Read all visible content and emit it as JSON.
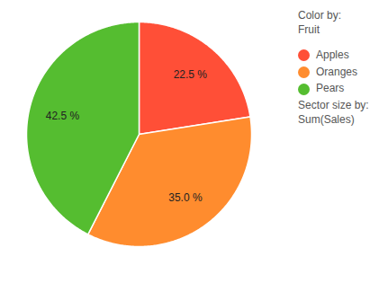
{
  "chart_data": {
    "type": "pie",
    "categories": [
      "Apples",
      "Oranges",
      "Pears"
    ],
    "values": [
      22.5,
      35.0,
      42.5
    ],
    "value_labels": [
      "22.5 %",
      "35.0 %",
      "42.5 %"
    ],
    "colors": [
      "#ff4f37",
      "#ff8c2e",
      "#55bd30"
    ],
    "data_labels": true,
    "legend": "top right",
    "legend_title": "Color by:",
    "legend_subtitle": "Fruit",
    "size_title": "Sector size by:",
    "size_subtitle": "Sum(Sales)"
  }
}
